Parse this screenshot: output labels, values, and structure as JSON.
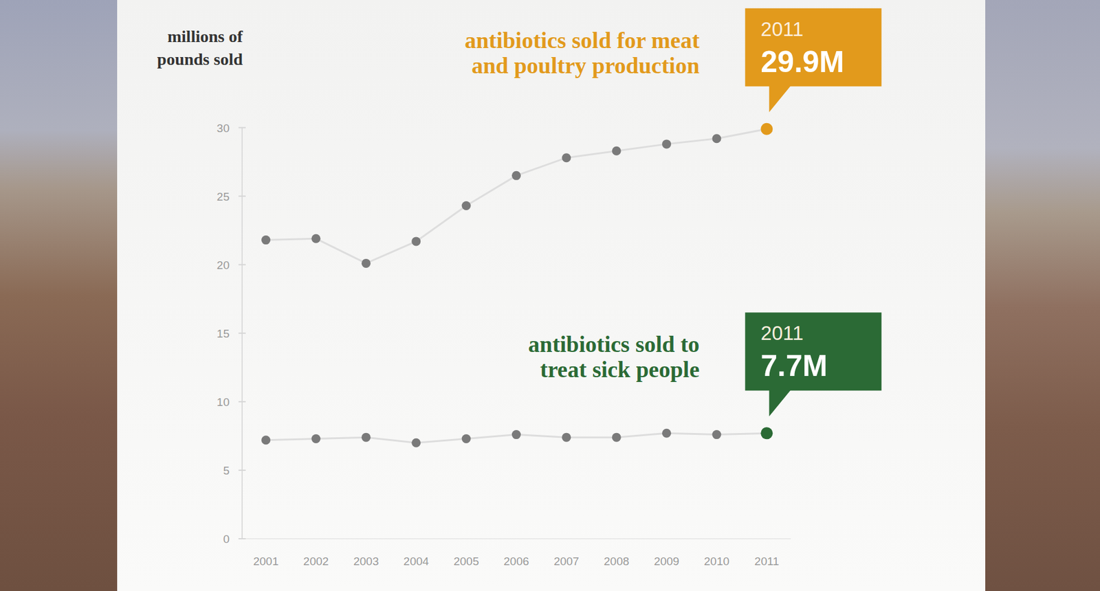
{
  "chart_data": {
    "type": "line",
    "y_label": "millions of pounds sold",
    "categories": [
      "2001",
      "2002",
      "2003",
      "2004",
      "2005",
      "2006",
      "2007",
      "2008",
      "2009",
      "2010",
      "2011"
    ],
    "series": [
      {
        "name": "antibiotics sold for meat and poultry production",
        "color": "#e29a1c",
        "values": [
          21.8,
          21.9,
          20.1,
          21.7,
          24.3,
          26.5,
          27.8,
          28.3,
          28.8,
          29.2,
          29.9
        ],
        "value_labels": [
          null,
          null,
          null,
          null,
          null,
          null,
          null,
          null,
          null,
          null,
          "29.9M"
        ]
      },
      {
        "name": "antibiotics sold to treat sick people",
        "color": "#2b6a35",
        "values": [
          7.2,
          7.3,
          7.4,
          7.0,
          7.3,
          7.6,
          7.4,
          7.4,
          7.7,
          7.6,
          7.7
        ],
        "value_labels": [
          null,
          null,
          null,
          null,
          null,
          null,
          null,
          null,
          null,
          null,
          "7.7M"
        ]
      }
    ],
    "ylim": [
      0,
      30
    ],
    "yticks": [
      0,
      5,
      10,
      15,
      20,
      25,
      30
    ],
    "grid": false,
    "marker": "circle",
    "line_style": "solid"
  }
}
